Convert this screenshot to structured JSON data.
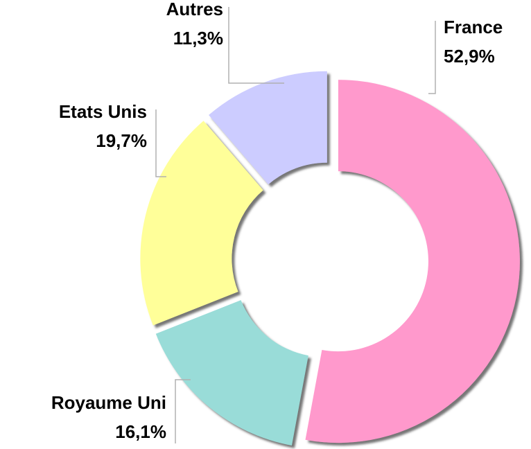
{
  "chart_data": {
    "type": "donut",
    "categories": [
      "France",
      "Royaume Uni",
      "Etats Unis",
      "Autres"
    ],
    "values": [
      52.9,
      16.1,
      19.7,
      11.3
    ],
    "value_labels": [
      "52,9%",
      "16,1%",
      "19,7%",
      "11,3%"
    ],
    "colors": [
      "#ff99cc",
      "#99dcd8",
      "#ffff99",
      "#ccccff"
    ]
  }
}
